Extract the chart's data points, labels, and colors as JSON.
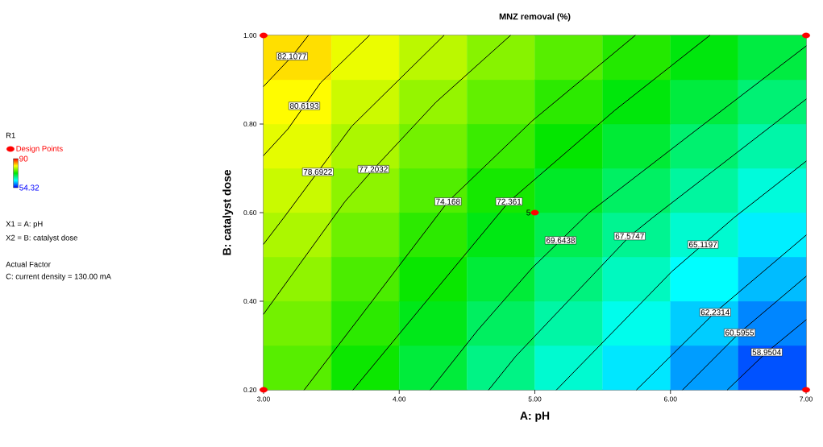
{
  "chart_data": {
    "type": "heatmap",
    "title": "MNZ removal (%)",
    "xlabel": "A: pH",
    "ylabel": "B: catalyst dose",
    "clabel": "R1",
    "cells": [
      [
        82.2,
        80.4,
        78.7,
        76.9,
        75.2,
        73.4,
        71.7,
        69.9
      ],
      [
        81.2,
        79.3,
        77.4,
        75.6,
        73.7,
        71.8,
        70.0,
        68.1
      ],
      [
        80.2,
        78.2,
        76.2,
        74.2,
        72.3,
        70.3,
        68.3,
        66.3
      ],
      [
        79.2,
        77.1,
        75.0,
        72.9,
        70.8,
        68.7,
        66.6,
        64.5
      ],
      [
        78.2,
        76.0,
        73.7,
        71.5,
        69.3,
        67.1,
        64.9,
        62.7
      ],
      [
        77.2,
        74.8,
        72.5,
        70.2,
        67.8,
        65.5,
        63.2,
        60.9
      ],
      [
        76.2,
        73.7,
        71.3,
        68.8,
        66.4,
        63.9,
        61.5,
        59.0
      ],
      [
        75.2,
        72.6,
        70.1,
        67.5,
        64.9,
        62.4,
        59.8,
        57.2
      ]
    ],
    "clim": [
      54.32,
      90
    ],
    "cticks": [
      54.32,
      90
    ],
    "xlim": [
      3,
      7
    ],
    "xticks": [
      {
        "value": 3,
        "label": "3.00"
      },
      {
        "value": 4,
        "label": "4.00"
      },
      {
        "value": 5,
        "label": "5.00"
      },
      {
        "value": 6,
        "label": "6.00"
      },
      {
        "value": 7,
        "label": "7.00"
      }
    ],
    "ylim": [
      0.2,
      1.0
    ],
    "yticks": [
      {
        "value": 0.2,
        "label": "0.20"
      },
      {
        "value": 0.4,
        "label": "0.40"
      },
      {
        "value": 0.6,
        "label": "0.60"
      },
      {
        "value": 0.8,
        "label": "0.80"
      },
      {
        "value": 1.0,
        "label": "1.00"
      }
    ],
    "series": [
      {
        "type": "line",
        "name": "82.1077",
        "color": "#000000",
        "marker": "none",
        "x": [
          3.0,
          3.21,
          3.33
        ],
        "values": [
          0.885,
          0.953,
          1.0
        ]
      },
      {
        "type": "line",
        "name": "80.6193",
        "color": "#000000",
        "marker": "none",
        "x": [
          3.0,
          3.18,
          3.42,
          3.78
        ],
        "values": [
          0.729,
          0.789,
          0.893,
          1.0
        ]
      },
      {
        "type": "line",
        "name": "78.6922",
        "color": "#000000",
        "marker": "none",
        "x": [
          3.0,
          3.15,
          3.65,
          4.33
        ],
        "values": [
          0.529,
          0.589,
          0.795,
          1.0
        ]
      },
      {
        "type": "line",
        "name": "77.2032",
        "color": "#000000",
        "marker": "none",
        "x": [
          3.0,
          3.6,
          3.81,
          4.27,
          4.82
        ],
        "values": [
          0.371,
          0.625,
          0.698,
          0.849,
          1.0
        ]
      },
      {
        "type": "line",
        "name": "74.168",
        "color": "#000000",
        "marker": "none",
        "x": [
          3.3,
          3.8,
          4.36,
          4.98,
          5.74
        ],
        "values": [
          0.2,
          0.4,
          0.625,
          0.807,
          1.0
        ]
      },
      {
        "type": "line",
        "name": "72.361",
        "color": "#000000",
        "marker": "none",
        "x": [
          3.66,
          4.2,
          4.81,
          5.59,
          6.29
        ],
        "values": [
          0.2,
          0.4,
          0.625,
          0.831,
          1.0
        ]
      },
      {
        "type": "line",
        "name": "69.6438",
        "color": "#000000",
        "marker": "none",
        "x": [
          4.23,
          4.58,
          4.98,
          5.4,
          6.18,
          7.0
        ],
        "values": [
          0.2,
          0.335,
          0.475,
          0.6,
          0.784,
          0.976
        ]
      },
      {
        "type": "line",
        "name": "67.5747",
        "color": "#000000",
        "marker": "none",
        "x": [
          4.66,
          4.86,
          5.7,
          5.87,
          7.0
        ],
        "values": [
          0.2,
          0.276,
          0.547,
          0.589,
          0.856
        ]
      },
      {
        "type": "line",
        "name": "65.1197",
        "color": "#000000",
        "marker": "none",
        "x": [
          5.16,
          6.01,
          6.47,
          7.0
        ],
        "values": [
          0.2,
          0.467,
          0.589,
          0.716
        ]
      },
      {
        "type": "line",
        "name": "62.2314",
        "color": "#000000",
        "marker": "none",
        "x": [
          5.75,
          6.33,
          7.0
        ],
        "values": [
          0.2,
          0.375,
          0.549
        ]
      },
      {
        "type": "line",
        "name": "60.5955",
        "color": "#000000",
        "marker": "none",
        "x": [
          6.09,
          6.51,
          7.0
        ],
        "values": [
          0.2,
          0.329,
          0.456
        ]
      },
      {
        "type": "line",
        "name": "58.9504",
        "color": "#000000",
        "marker": "none",
        "x": [
          6.42,
          6.71,
          7.0
        ],
        "values": [
          0.2,
          0.285,
          0.358
        ]
      },
      {
        "type": "scatter",
        "name": "Design Points",
        "color": "#ff0000",
        "marker": "circle",
        "x": [
          3,
          3,
          7,
          7,
          5
        ],
        "values": [
          0.2,
          1.0,
          0.2,
          1.0,
          0.6
        ]
      }
    ],
    "legend": "left",
    "annotations": [
      {
        "text": "5",
        "x": 5,
        "y": 0.6
      },
      "X1 = A: pH",
      "X2 = B: catalyst dose",
      "Actual Factor",
      "C: current density = 130.00 mA"
    ]
  }
}
